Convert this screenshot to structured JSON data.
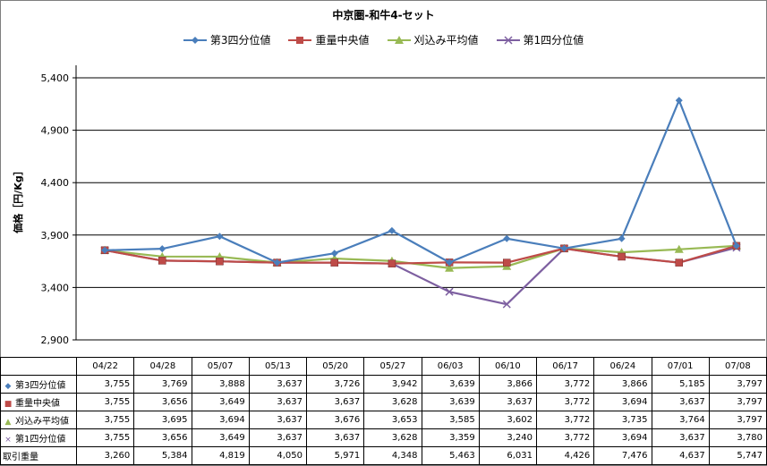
{
  "chart_data": {
    "type": "line",
    "title": "中京圏-和牛4-セット",
    "ylabel": "価格［円/Kg］",
    "ylim": [
      2900,
      5400
    ],
    "yticks": [
      2900,
      3400,
      3900,
      4400,
      4900,
      5400
    ],
    "ytick_labels": [
      "2,900",
      "3,400",
      "3,900",
      "4,400",
      "4,900",
      "5,400"
    ],
    "categories": [
      "04/22",
      "04/28",
      "05/07",
      "05/13",
      "05/20",
      "05/27",
      "06/03",
      "06/10",
      "06/17",
      "06/24",
      "07/01",
      "07/08"
    ],
    "grid": "horizontal",
    "legend_position": "top",
    "series": [
      {
        "name": "第3四分位値",
        "color": "#4a7ebb",
        "marker": "diamond",
        "values": [
          3755,
          3769,
          3888,
          3637,
          3726,
          3942,
          3639,
          3866,
          3772,
          3866,
          5185,
          3797
        ],
        "labels": [
          "3,755",
          "3,769",
          "3,888",
          "3,637",
          "3,726",
          "3,942",
          "3,639",
          "3,866",
          "3,772",
          "3,866",
          "5,185",
          "3,797"
        ]
      },
      {
        "name": "重量中央値",
        "color": "#be4b48",
        "marker": "square",
        "values": [
          3755,
          3656,
          3649,
          3637,
          3637,
          3628,
          3639,
          3637,
          3772,
          3694,
          3637,
          3797
        ],
        "labels": [
          "3,755",
          "3,656",
          "3,649",
          "3,637",
          "3,637",
          "3,628",
          "3,639",
          "3,637",
          "3,772",
          "3,694",
          "3,637",
          "3,797"
        ]
      },
      {
        "name": "刈込み平均値",
        "color": "#98b954",
        "marker": "triangle",
        "values": [
          3755,
          3695,
          3694,
          3637,
          3676,
          3653,
          3585,
          3602,
          3772,
          3735,
          3764,
          3797
        ],
        "labels": [
          "3,755",
          "3,695",
          "3,694",
          "3,637",
          "3,676",
          "3,653",
          "3,585",
          "3,602",
          "3,772",
          "3,735",
          "3,764",
          "3,797"
        ]
      },
      {
        "name": "第1四分位値",
        "color": "#7d5fa0",
        "marker": "x",
        "values": [
          3755,
          3656,
          3649,
          3637,
          3637,
          3628,
          3359,
          3240,
          3772,
          3694,
          3637,
          3780
        ],
        "labels": [
          "3,755",
          "3,656",
          "3,649",
          "3,637",
          "3,637",
          "3,628",
          "3,359",
          "3,240",
          "3,772",
          "3,694",
          "3,637",
          "3,780"
        ]
      }
    ],
    "extra_rows": [
      {
        "name": "取引重量",
        "values": [
          3260,
          5384,
          4819,
          4050,
          5971,
          4348,
          5463,
          6031,
          4426,
          7476,
          4637,
          5747
        ],
        "labels": [
          "3,260",
          "5,384",
          "4,819",
          "4,050",
          "5,971",
          "4,348",
          "5,463",
          "6,031",
          "4,426",
          "7,476",
          "4,637",
          "5,747"
        ]
      }
    ]
  }
}
